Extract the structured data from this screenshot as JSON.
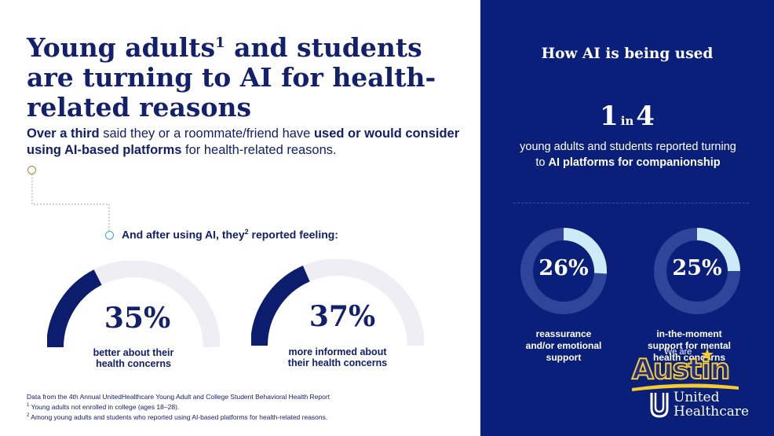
{
  "left": {
    "title_part1": "Young adults",
    "title_sup": "1",
    "title_part2": " and students are turning to AI for health-related reasons",
    "subtitle": {
      "t1": "Over a third",
      "t2": " said they or a roommate/friend have ",
      "t3": "used or would consider using AI-based platforms",
      "t4": " for health-related reasons."
    },
    "after": {
      "t1": "And after using AI, they",
      "sup": "2",
      "t2": " reported feeling:"
    },
    "gauges": [
      {
        "value": "35%",
        "label_line1": "better about their",
        "label_line2": "health concerns",
        "fraction": 0.35
      },
      {
        "value": "37%",
        "label_line1": "more informed about",
        "label_line2": "their health concerns",
        "fraction": 0.37
      }
    ],
    "footnotes": {
      "source": "Data from the 4th Annual UnitedHealthcare Young Adult and College Student Behavioral Health Report",
      "note1_sup": "1",
      "note1": " Young adults not enrolled in college (ages 18–28).",
      "note2_sup": "2",
      "note2": " Among young adults and students who reported using AI-based platforms for health-related reasons."
    }
  },
  "right": {
    "heading": "How AI is being used",
    "ratio_num": "1",
    "ratio_word": "in",
    "ratio_den": "4",
    "desc_line1": "young adults and students reported turning",
    "desc_to": "to ",
    "desc_bold": "AI platforms for companionship",
    "rings": [
      {
        "value": "26%",
        "fraction": 0.26,
        "label_line1": "reassurance",
        "label_line2": "and/or emotional",
        "label_line3": "support"
      },
      {
        "value": "25%",
        "fraction": 0.25,
        "label_line1": "in-the-moment",
        "label_line2": "support for mental",
        "label_line3": "health concerns"
      }
    ]
  },
  "brand": {
    "weare": "We are",
    "austin": "Austin",
    "uhc_line1": "United",
    "uhc_line2": "Healthcare"
  },
  "colors": {
    "navy": "#13206b",
    "panel": "#0a1f7a",
    "gauge_fill": "#0d1d6e",
    "gauge_track": "#eeeef4",
    "ring_fill": "#cdebf7",
    "ring_track": "#2f4599"
  }
}
